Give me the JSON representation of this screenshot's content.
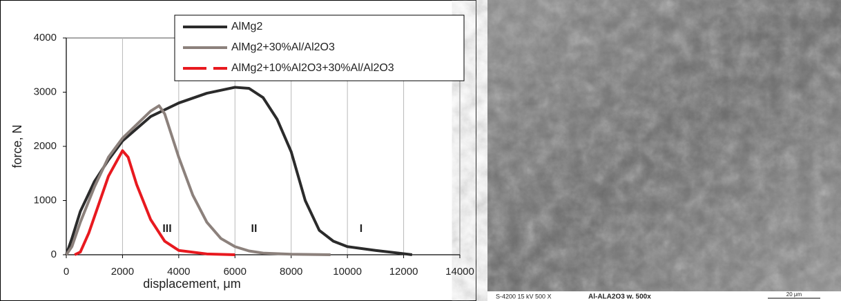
{
  "chart_data": {
    "type": "line",
    "xlabel": "displacement, μm",
    "ylabel": "force, N",
    "xlim": [
      0,
      14000
    ],
    "xticks": [
      0,
      2000,
      4000,
      6000,
      8000,
      10000,
      12000,
      14000
    ],
    "ylim": [
      0,
      4000
    ],
    "yticks": [
      0,
      1000,
      2000,
      3000,
      4000
    ],
    "grid": "x",
    "legend": "top-right",
    "annotations": [
      "III",
      "II",
      "I"
    ],
    "series": [
      {
        "name": "AlMg2",
        "color": "#2b2b2b",
        "x": [
          0,
          200,
          500,
          1000,
          1500,
          2000,
          3000,
          4000,
          5000,
          6000,
          6500,
          7000,
          7500,
          8000,
          8500,
          9000,
          9500,
          10000,
          11000,
          12000,
          12300
        ],
        "values": [
          0,
          300,
          800,
          1350,
          1750,
          2100,
          2550,
          2800,
          2980,
          3090,
          3070,
          2900,
          2500,
          1900,
          1000,
          450,
          250,
          150,
          80,
          20,
          0
        ]
      },
      {
        "name": "AlMg2+30%Al/Al2O3",
        "color": "#8c817c",
        "x": [
          0,
          200,
          500,
          1000,
          1500,
          2000,
          2500,
          3000,
          3300,
          3500,
          4000,
          4500,
          5000,
          5500,
          6000,
          6500,
          7000,
          8000,
          9400
        ],
        "values": [
          0,
          150,
          600,
          1250,
          1800,
          2150,
          2400,
          2650,
          2750,
          2600,
          1800,
          1100,
          600,
          300,
          150,
          70,
          30,
          10,
          0
        ]
      },
      {
        "name": "AlMg2+10%Al2O3+30%Al/Al2O3",
        "color": "#e8191f",
        "x": [
          300,
          500,
          800,
          1000,
          1500,
          2000,
          2200,
          2500,
          3000,
          3500,
          4000,
          5000,
          6000
        ],
        "values": [
          0,
          50,
          400,
          700,
          1450,
          1920,
          1800,
          1300,
          650,
          250,
          80,
          15,
          0
        ]
      }
    ]
  },
  "micrograph": {
    "instrument": "S-4200 15 kV 500 X",
    "label": "Al-ALA2O3 w. 500x",
    "scale": "20 μm"
  }
}
